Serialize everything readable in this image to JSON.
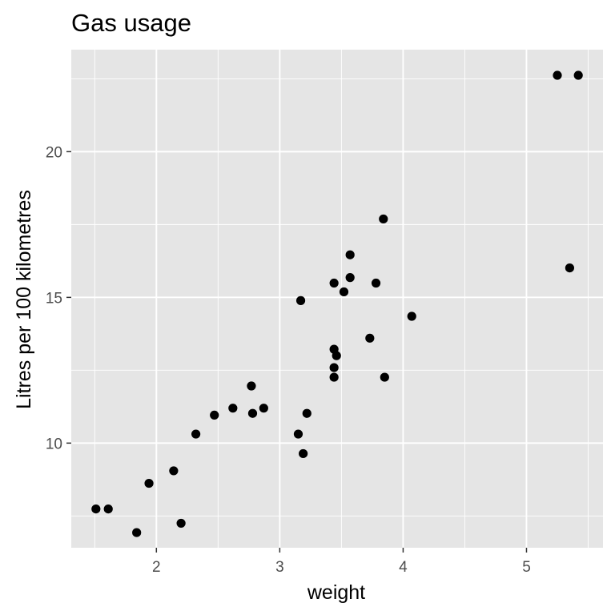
{
  "chart_data": {
    "type": "scatter",
    "title": "Gas usage",
    "xlabel": "weight",
    "ylabel": "Litres per 100 kilometres",
    "xlim": [
      1.31,
      5.62
    ],
    "ylim": [
      6.41,
      23.5
    ],
    "x_ticks": [
      2,
      3,
      4,
      5
    ],
    "y_ticks": [
      10,
      15,
      20
    ],
    "grid": true,
    "legend": "none",
    "colors": {
      "panel": "#e5e5e5",
      "grid": "#ffffff",
      "point": "#000000",
      "tick": "#333333"
    },
    "points": [
      {
        "x": 1.51,
        "y": 7.74
      },
      {
        "x": 1.61,
        "y": 7.74
      },
      {
        "x": 1.84,
        "y": 6.93
      },
      {
        "x": 1.94,
        "y": 8.62
      },
      {
        "x": 2.14,
        "y": 9.05
      },
      {
        "x": 2.2,
        "y": 7.25
      },
      {
        "x": 2.32,
        "y": 10.31
      },
      {
        "x": 2.47,
        "y": 10.96
      },
      {
        "x": 2.62,
        "y": 11.2
      },
      {
        "x": 2.77,
        "y": 11.96
      },
      {
        "x": 2.78,
        "y": 11.02
      },
      {
        "x": 2.87,
        "y": 11.2
      },
      {
        "x": 3.15,
        "y": 10.31
      },
      {
        "x": 3.17,
        "y": 14.89
      },
      {
        "x": 3.19,
        "y": 9.64
      },
      {
        "x": 3.22,
        "y": 11.02
      },
      {
        "x": 3.44,
        "y": 15.49
      },
      {
        "x": 3.44,
        "y": 13.22
      },
      {
        "x": 3.44,
        "y": 12.59
      },
      {
        "x": 3.44,
        "y": 12.26
      },
      {
        "x": 3.46,
        "y": 13.0
      },
      {
        "x": 3.52,
        "y": 15.19
      },
      {
        "x": 3.57,
        "y": 16.46
      },
      {
        "x": 3.57,
        "y": 15.68
      },
      {
        "x": 3.73,
        "y": 13.6
      },
      {
        "x": 3.78,
        "y": 15.49
      },
      {
        "x": 3.84,
        "y": 17.69
      },
      {
        "x": 3.85,
        "y": 12.26
      },
      {
        "x": 4.07,
        "y": 14.35
      },
      {
        "x": 5.25,
        "y": 22.62
      },
      {
        "x": 5.35,
        "y": 16.01
      },
      {
        "x": 5.42,
        "y": 22.62
      }
    ]
  }
}
